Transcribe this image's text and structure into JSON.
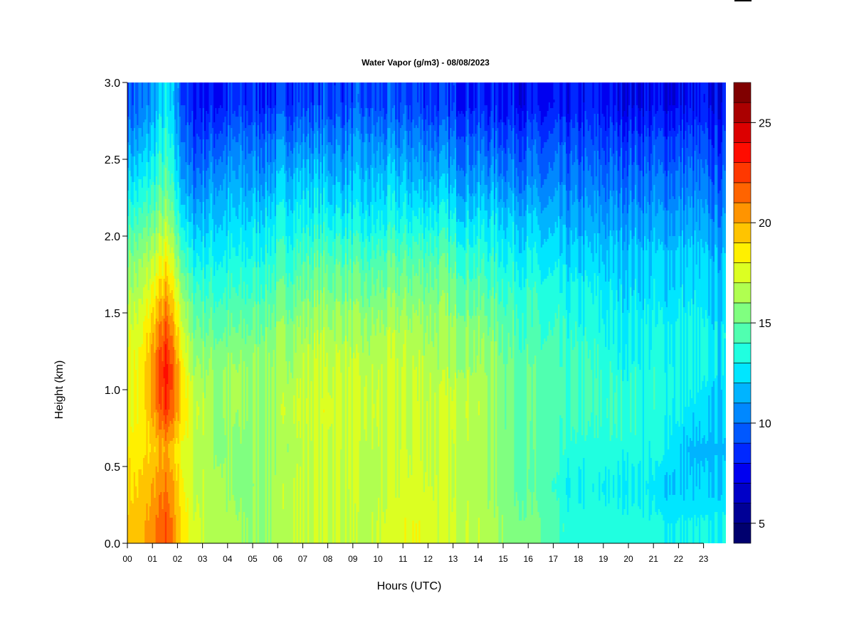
{
  "chart_data": {
    "type": "heatmap",
    "title": "Water Vapor (g/m3) - 08/08/2023",
    "xlabel": "Hours (UTC)",
    "ylabel": "Height (km)",
    "xlim": [
      0,
      23.85
    ],
    "ylim": [
      0,
      3.0
    ],
    "x_tick_labels": [
      "00",
      "01",
      "02",
      "03",
      "04",
      "05",
      "06",
      "07",
      "08",
      "09",
      "10",
      "11",
      "12",
      "13",
      "14",
      "15",
      "16",
      "17",
      "18",
      "19",
      "20",
      "21",
      "22",
      "23"
    ],
    "y_ticks": [
      0,
      0.5,
      1.0,
      1.5,
      2.0,
      2.5,
      3.0
    ],
    "y_tick_labels": [
      "0.0",
      "0.5",
      "1.0",
      "1.5",
      "2.0",
      "2.5",
      "3.0"
    ],
    "x_hours": [
      0,
      1,
      2,
      3,
      4,
      5,
      6,
      7,
      8,
      9,
      10,
      11,
      12,
      13,
      14,
      15,
      16,
      17,
      18,
      19,
      20,
      21,
      22,
      23
    ],
    "y_heights_km": [
      0.125,
      0.375,
      0.625,
      0.875,
      1.125,
      1.375,
      1.625,
      1.875,
      2.125,
      2.375,
      2.625,
      2.875
    ],
    "values": [
      [
        19.5,
        19,
        18.5,
        18,
        18,
        17.5,
        16.5,
        15.5,
        14,
        12.5,
        11,
        9.5
      ],
      [
        22,
        21,
        20,
        22.5,
        23.5,
        22,
        20,
        18,
        16,
        14.5,
        13.5,
        12.5
      ],
      [
        17.5,
        17,
        17,
        17.5,
        16.5,
        15.5,
        14.5,
        13,
        11.5,
        10,
        9,
        8
      ],
      [
        16.5,
        16.5,
        16,
        16,
        16,
        15,
        14,
        13,
        12,
        11,
        9.5,
        8
      ],
      [
        16,
        15.5,
        15.5,
        16,
        16,
        15,
        14,
        13,
        12,
        11,
        10,
        8.5
      ],
      [
        16,
        16,
        16,
        16,
        16,
        15.5,
        14.5,
        13.5,
        12.5,
        11,
        10,
        8.5
      ],
      [
        17,
        17,
        16.5,
        17,
        16.5,
        16,
        15,
        14,
        13,
        12,
        10.5,
        9
      ],
      [
        17,
        17,
        17,
        17.5,
        17,
        16.5,
        15.5,
        14.5,
        13,
        12,
        10.5,
        9
      ],
      [
        17,
        17,
        17,
        17.5,
        17,
        16.5,
        15.5,
        14.5,
        13,
        11.5,
        10.5,
        9
      ],
      [
        16.5,
        16.5,
        16.5,
        17,
        16.5,
        16,
        15,
        14,
        12.5,
        11.5,
        10.5,
        9
      ],
      [
        17.5,
        17,
        17,
        17,
        17,
        16.5,
        15.5,
        14.5,
        13,
        12,
        10.5,
        9
      ],
      [
        18,
        17.5,
        17,
        17,
        17,
        16.5,
        15.5,
        14.5,
        13,
        11.5,
        10.5,
        9
      ],
      [
        17,
        17,
        17,
        17,
        16.5,
        16,
        15.5,
        14.5,
        13,
        11.5,
        10,
        8.5
      ],
      [
        17,
        16.5,
        16.5,
        17,
        16.5,
        16,
        15,
        14,
        12.5,
        11,
        10,
        8.5
      ],
      [
        16.5,
        16,
        16,
        16,
        16,
        15.5,
        14.5,
        13.5,
        12.5,
        11,
        9.5,
        8
      ],
      [
        15.5,
        15,
        15,
        15,
        15,
        14.5,
        14,
        13,
        12,
        10.5,
        9.5,
        8
      ],
      [
        15,
        14.5,
        14.5,
        14.5,
        14.5,
        14,
        13.5,
        12.5,
        11.5,
        10,
        9,
        7.5
      ],
      [
        13.5,
        13,
        13.5,
        14,
        14,
        13.5,
        13,
        12,
        11,
        10,
        9,
        7.5
      ],
      [
        13.5,
        13,
        13.5,
        14,
        14,
        13.5,
        13,
        12,
        11,
        10,
        9,
        8
      ],
      [
        13.5,
        13,
        13.5,
        14,
        13.5,
        13,
        12.5,
        12,
        11,
        10,
        9,
        7.5
      ],
      [
        13.5,
        13,
        13.5,
        13.5,
        13.5,
        13,
        12.5,
        12,
        11,
        10,
        9,
        7.5
      ],
      [
        13,
        12,
        13,
        13.5,
        13.5,
        13,
        12.5,
        12,
        11,
        10,
        9,
        7.5
      ],
      [
        13,
        12,
        11.5,
        12.5,
        13,
        13,
        12.5,
        12,
        11,
        10,
        9,
        7.5
      ],
      [
        13,
        12,
        11.5,
        12,
        12.5,
        12.5,
        12,
        11.5,
        10.5,
        9.5,
        8.5,
        7.5
      ]
    ],
    "colorbar": {
      "range": [
        4,
        27
      ],
      "ticks": [
        5,
        10,
        15,
        20,
        25
      ],
      "tick_labels": [
        "5",
        "10",
        "15",
        "20",
        "25"
      ],
      "colors": [
        "#00006e",
        "#000096",
        "#0000c8",
        "#0000f0",
        "#0028ff",
        "#0058ff",
        "#0088ff",
        "#00b4ff",
        "#00e6ff",
        "#20ffe0",
        "#50ffb0",
        "#80ff80",
        "#b0ff50",
        "#dcff22",
        "#fff000",
        "#ffc400",
        "#ff9400",
        "#ff6400",
        "#ff3800",
        "#ff0c00",
        "#dc0000",
        "#aa0000",
        "#800000"
      ]
    }
  }
}
